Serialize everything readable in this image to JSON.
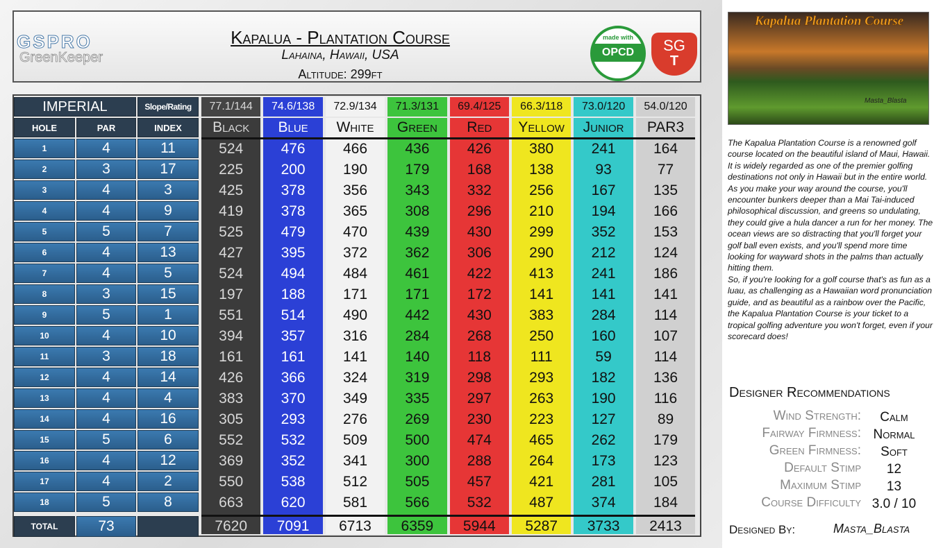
{
  "header": {
    "brand": "GSPRO",
    "brand_sub": "GreenKeeper",
    "title": "Kapalua - Plantation Course",
    "location": "Lahaina, Hawaii, USA",
    "altitude": "Altitude: 299ft",
    "badge_top": "made with",
    "badge_main": "OPCD",
    "logo_top": "SG",
    "logo_bottom": "T"
  },
  "table": {
    "unit": "IMPERIAL",
    "slope_label": "Slope/Rating",
    "columns": [
      "HOLE",
      "PAR",
      "INDEX"
    ],
    "tees": [
      {
        "name": "Black",
        "rating": "77.1/144",
        "color": "#3b3b3b",
        "text_color": "#d8d8d8"
      },
      {
        "name": "Blue",
        "rating": "74.6/138",
        "color": "#2b40d6",
        "text_color": "#ffffff"
      },
      {
        "name": "White",
        "rating": "72.9/134",
        "color": "#f2f2f2",
        "text_color": "#111111"
      },
      {
        "name": "Green",
        "rating": "71.3/131",
        "color": "#3dc43d",
        "text_color": "#111111"
      },
      {
        "name": "Red",
        "rating": "69.4/125",
        "color": "#e63636",
        "text_color": "#111111"
      },
      {
        "name": "Yellow",
        "rating": "66.3/118",
        "color": "#efe61f",
        "text_color": "#111111"
      },
      {
        "name": "Junior",
        "rating": "73.0/120",
        "color": "#34c9c9",
        "text_color": "#111111"
      },
      {
        "name": "PAR3",
        "rating": "54.0/120",
        "color": "#d0d0d0",
        "text_color": "#111111"
      }
    ],
    "rows": [
      {
        "hole": "1",
        "par": "4",
        "index": "11",
        "yards": [
          "524",
          "476",
          "466",
          "436",
          "426",
          "380",
          "241",
          "164"
        ]
      },
      {
        "hole": "2",
        "par": "3",
        "index": "17",
        "yards": [
          "225",
          "200",
          "190",
          "179",
          "168",
          "138",
          "93",
          "77"
        ]
      },
      {
        "hole": "3",
        "par": "4",
        "index": "3",
        "yards": [
          "425",
          "378",
          "356",
          "343",
          "332",
          "256",
          "167",
          "135"
        ]
      },
      {
        "hole": "4",
        "par": "4",
        "index": "9",
        "yards": [
          "419",
          "378",
          "365",
          "308",
          "296",
          "210",
          "194",
          "166"
        ]
      },
      {
        "hole": "5",
        "par": "5",
        "index": "7",
        "yards": [
          "525",
          "479",
          "470",
          "439",
          "430",
          "299",
          "352",
          "153"
        ]
      },
      {
        "hole": "6",
        "par": "4",
        "index": "13",
        "yards": [
          "427",
          "395",
          "372",
          "362",
          "306",
          "290",
          "212",
          "124"
        ]
      },
      {
        "hole": "7",
        "par": "4",
        "index": "5",
        "yards": [
          "524",
          "494",
          "484",
          "461",
          "422",
          "413",
          "241",
          "186"
        ]
      },
      {
        "hole": "8",
        "par": "3",
        "index": "15",
        "yards": [
          "197",
          "188",
          "171",
          "171",
          "172",
          "141",
          "141",
          "141"
        ]
      },
      {
        "hole": "9",
        "par": "5",
        "index": "1",
        "yards": [
          "551",
          "514",
          "490",
          "442",
          "430",
          "383",
          "284",
          "114"
        ]
      },
      {
        "hole": "10",
        "par": "4",
        "index": "10",
        "yards": [
          "394",
          "357",
          "316",
          "284",
          "268",
          "250",
          "160",
          "107"
        ]
      },
      {
        "hole": "11",
        "par": "3",
        "index": "18",
        "yards": [
          "161",
          "161",
          "141",
          "140",
          "118",
          "111",
          "59",
          "114"
        ]
      },
      {
        "hole": "12",
        "par": "4",
        "index": "14",
        "yards": [
          "426",
          "366",
          "324",
          "319",
          "298",
          "293",
          "182",
          "136"
        ]
      },
      {
        "hole": "13",
        "par": "4",
        "index": "4",
        "yards": [
          "383",
          "370",
          "349",
          "335",
          "297",
          "263",
          "190",
          "116"
        ]
      },
      {
        "hole": "14",
        "par": "4",
        "index": "16",
        "yards": [
          "305",
          "293",
          "276",
          "269",
          "230",
          "223",
          "127",
          "89"
        ]
      },
      {
        "hole": "15",
        "par": "5",
        "index": "6",
        "yards": [
          "552",
          "532",
          "509",
          "500",
          "474",
          "465",
          "262",
          "179"
        ]
      },
      {
        "hole": "16",
        "par": "4",
        "index": "12",
        "yards": [
          "369",
          "352",
          "341",
          "300",
          "288",
          "264",
          "173",
          "123"
        ]
      },
      {
        "hole": "17",
        "par": "4",
        "index": "2",
        "yards": [
          "550",
          "538",
          "512",
          "505",
          "457",
          "421",
          "281",
          "105"
        ]
      },
      {
        "hole": "18",
        "par": "5",
        "index": "8",
        "yards": [
          "663",
          "620",
          "581",
          "566",
          "532",
          "487",
          "374",
          "184"
        ]
      }
    ],
    "total": {
      "label": "TOTAL",
      "par": "73",
      "yards": [
        "7620",
        "7091",
        "6713",
        "6359",
        "5944",
        "5287",
        "3733",
        "2413"
      ]
    }
  },
  "sidebar": {
    "image_title": "Kapalua Plantation Course",
    "image_credit": "Masta_Blasta",
    "description": [
      "The Kapalua Plantation Course is a renowned golf course located on the beautiful island of Maui, Hawaii. It is widely regarded as one of the premier golfing destinations not only in Hawaii but in the entire world.",
      "As you make your way around the course, you'll encounter bunkers deeper than a Mai Tai-induced philosophical discussion, and greens so undulating, they could give a hula dancer a run for her money. The ocean views are so distracting that you'll forget your golf ball even exists, and you'll spend more time looking for wayward shots in the palms than actually hitting them.",
      "So, if you're looking for a golf course that's as fun as a luau, as challenging as a Hawaiian word pronunciation guide, and as beautiful as a rainbow over the Pacific, the Kapalua Plantation Course is your ticket to a tropical golfing adventure you won't forget, even if your scorecard does!"
    ],
    "recommendations_title": "Designer Recommendations",
    "recommendations": [
      {
        "label": "Wind Strength:",
        "value": "Calm"
      },
      {
        "label": "Fairway Firmness:",
        "value": "Normal"
      },
      {
        "label": "Green Firmness:",
        "value": "Soft"
      },
      {
        "label": "Default Stimp",
        "value": "12"
      },
      {
        "label": "Maximum Stimp",
        "value": "13"
      },
      {
        "label": "Course Difficulty",
        "value": "3.0 / 10"
      }
    ],
    "designed_by_label": "Designed By:",
    "designer": "Masta_Blasta"
  }
}
